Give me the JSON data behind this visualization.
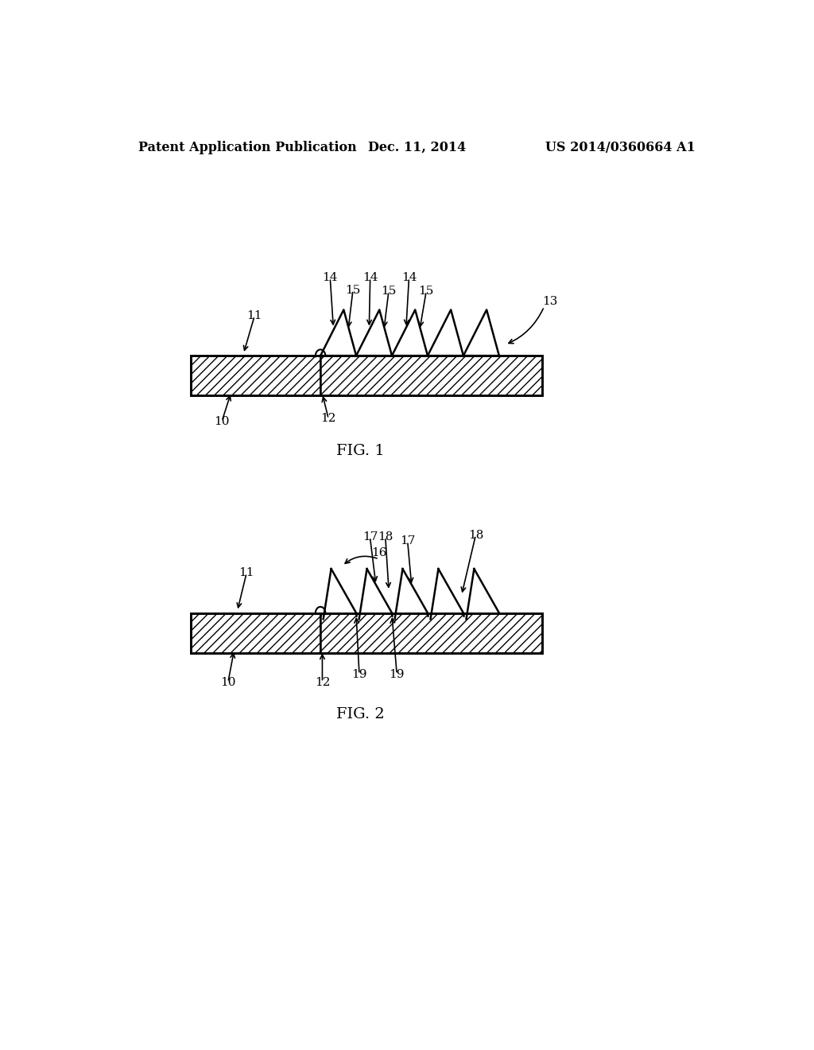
{
  "bg_color": "#ffffff",
  "header_left": "Patent Application Publication",
  "header_center": "Dec. 11, 2014",
  "header_right": "US 2014/0360664 A1",
  "fig1_label": "FIG. 1",
  "fig2_label": "FIG. 2",
  "text_color": "#000000"
}
